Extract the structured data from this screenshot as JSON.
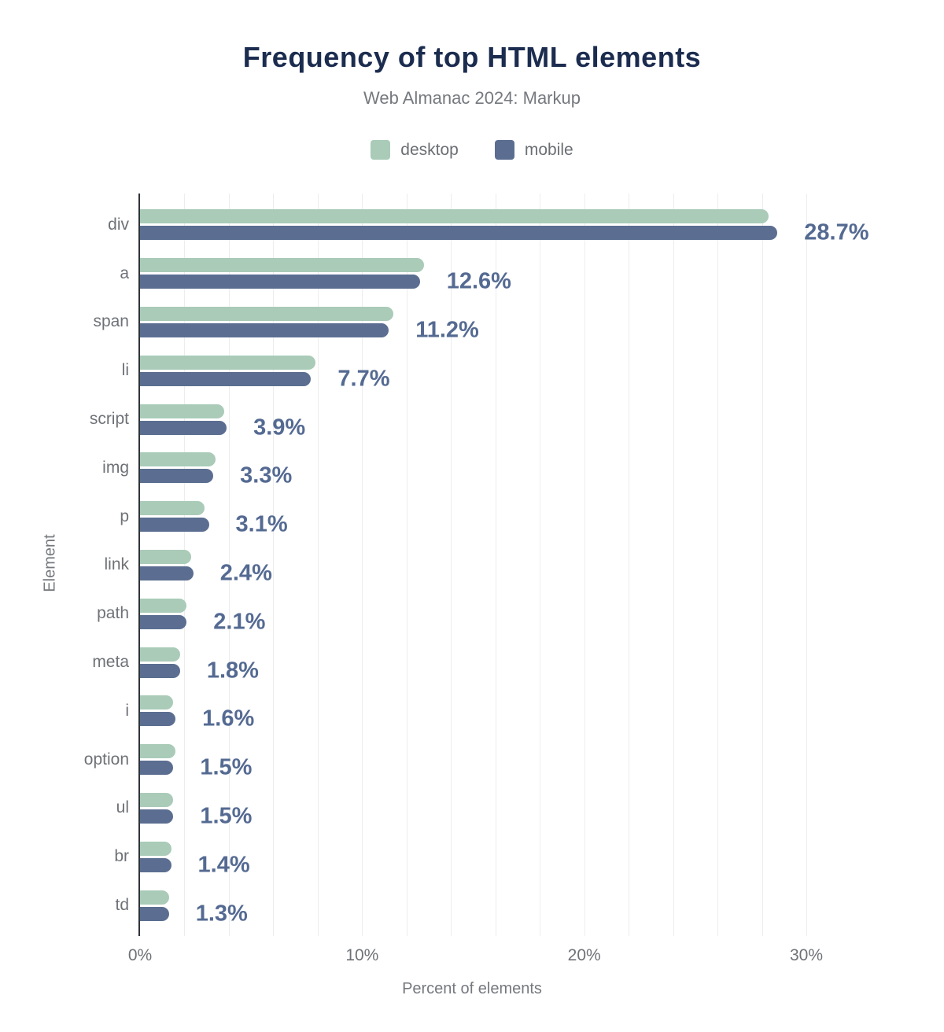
{
  "title": "Frequency of top HTML elements",
  "subtitle": "Web Almanac 2024: Markup",
  "legend": {
    "items": [
      {
        "label": "desktop",
        "color": "#a9cbb8"
      },
      {
        "label": "mobile",
        "color": "#5b6e91"
      }
    ]
  },
  "colors": {
    "title": "#1b2c4f",
    "desktop_bar": "#a9cbb8",
    "mobile_bar": "#5b6e91",
    "value_label": "#546a92",
    "axis_line": "#2e3338",
    "gridline": "#ededed",
    "muted_text": "#75797e"
  },
  "chart_data": {
    "type": "bar",
    "orientation": "horizontal",
    "title": "Frequency of top HTML elements",
    "subtitle": "Web Almanac 2024: Markup",
    "xlabel": "Percent of elements",
    "ylabel": "Element",
    "xlim": [
      0,
      30
    ],
    "x_ticks": [
      {
        "value": 0,
        "label": "0%"
      },
      {
        "value": 10,
        "label": "10%"
      },
      {
        "value": 20,
        "label": "20%"
      },
      {
        "value": 30,
        "label": "30%"
      }
    ],
    "gridline_step_pct": 2,
    "grid": true,
    "legend_position": "top",
    "categories": [
      "div",
      "a",
      "span",
      "li",
      "script",
      "img",
      "p",
      "link",
      "path",
      "meta",
      "i",
      "option",
      "ul",
      "br",
      "td"
    ],
    "series": [
      {
        "name": "desktop",
        "color": "#a9cbb8",
        "values": [
          28.3,
          12.8,
          11.4,
          7.9,
          3.8,
          3.4,
          2.9,
          2.3,
          2.1,
          1.8,
          1.5,
          1.6,
          1.5,
          1.4,
          1.3
        ]
      },
      {
        "name": "mobile",
        "color": "#5b6e91",
        "values": [
          28.7,
          12.6,
          11.2,
          7.7,
          3.9,
          3.3,
          3.1,
          2.4,
          2.1,
          1.8,
          1.6,
          1.5,
          1.5,
          1.4,
          1.3
        ]
      }
    ],
    "data_labels": [
      "28.7%",
      "12.6%",
      "11.2%",
      "7.7%",
      "3.9%",
      "3.3%",
      "3.1%",
      "2.4%",
      "2.1%",
      "1.8%",
      "1.6%",
      "1.5%",
      "1.5%",
      "1.4%",
      "1.3%"
    ]
  }
}
